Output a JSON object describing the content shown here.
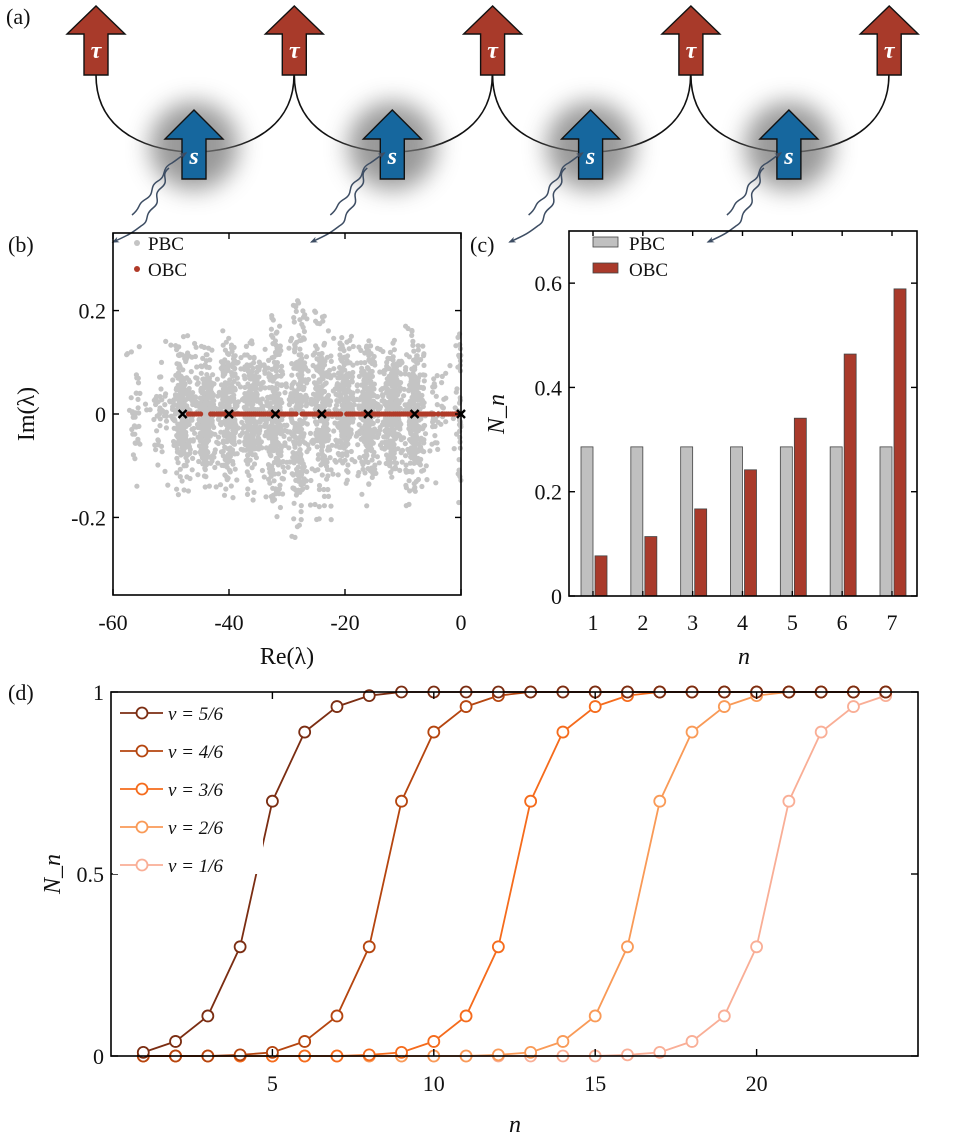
{
  "panel_labels": {
    "a": "(a)",
    "b": "(b)",
    "c": "(c)",
    "d": "(d)"
  },
  "diagram": {
    "top_spin_label": "τ",
    "bottom_spin_label": "s",
    "n_units": 5,
    "colors": {
      "tau": "#a83a2a",
      "s": "#16679e",
      "photon": "#3d4d63"
    }
  },
  "chart_data": [
    {
      "panel": "b",
      "type": "scatter",
      "xlabel": "Re(λ)",
      "ylabel": "Im(λ)",
      "xlim": [
        -60,
        0
      ],
      "ylim": [
        -0.35,
        0.35
      ],
      "xticks": [
        "-60",
        "-40",
        "-20",
        "0"
      ],
      "xtick_values": [
        -60,
        -40,
        -20,
        0
      ],
      "yticks": [
        "0.2",
        "0",
        "-0.2"
      ],
      "ytick_values": [
        0.2,
        0,
        -0.2
      ],
      "legend": [
        {
          "name": "PBC",
          "color": "#c4c4c4"
        },
        {
          "name": "OBC",
          "color": "#b03a28"
        }
      ],
      "legend_placement": "top-left",
      "pbc_clusters": [
        {
          "re": -56,
          "im_max": 0.18
        },
        {
          "re": -52,
          "im_max": 0.15
        },
        {
          "re": -48,
          "im_max": 0.17
        },
        {
          "re": -44,
          "im_max": 0.15
        },
        {
          "re": -40,
          "im_max": 0.17
        },
        {
          "re": -36,
          "im_max": 0.17
        },
        {
          "re": -32,
          "im_max": 0.21
        },
        {
          "re": -28,
          "im_max": 0.26
        },
        {
          "re": -24,
          "im_max": 0.22
        },
        {
          "re": -20,
          "im_max": 0.16
        },
        {
          "re": -16,
          "im_max": 0.18
        },
        {
          "re": -12,
          "im_max": 0.16
        },
        {
          "re": -8,
          "im_max": 0.18
        },
        {
          "re": -4,
          "im_max": 0.15
        },
        {
          "re": 0,
          "im_max": 0.2
        }
      ],
      "obc_range_re": [
        -47,
        0
      ],
      "obc_im": 0,
      "exceptional_points_re": [
        -48,
        -40,
        -32,
        -24,
        -16,
        -8,
        0
      ]
    },
    {
      "panel": "c",
      "type": "bar",
      "xlabel": "n",
      "ylabel": "N_n",
      "categories": [
        "1",
        "2",
        "3",
        "4",
        "5",
        "6",
        "7"
      ],
      "ylim": [
        0,
        0.7
      ],
      "yticks": [
        "0",
        "0.2",
        "0.4",
        "0.6"
      ],
      "ytick_values": [
        0,
        0.2,
        0.4,
        0.6
      ],
      "legend_placement": "top-left",
      "series": [
        {
          "name": "PBC",
          "color": "#c0c0c0",
          "values": [
            0.286,
            0.286,
            0.286,
            0.286,
            0.286,
            0.286,
            0.286
          ]
        },
        {
          "name": "OBC",
          "color": "#a93a2b",
          "values": [
            0.077,
            0.114,
            0.167,
            0.242,
            0.341,
            0.464,
            0.589
          ]
        }
      ]
    },
    {
      "panel": "d",
      "type": "line",
      "xlabel": "n",
      "ylabel": "N_n",
      "xlim": [
        0,
        25
      ],
      "ylim": [
        0,
        1
      ],
      "xticks": [
        "5",
        "10",
        "15",
        "20"
      ],
      "xtick_values": [
        5,
        10,
        15,
        20
      ],
      "yticks": [
        "0",
        "0.5",
        "1"
      ],
      "ytick_values": [
        0,
        0.5,
        1
      ],
      "legend_placement": "top-left",
      "x": [
        1,
        2,
        3,
        4,
        5,
        6,
        7,
        8,
        9,
        10,
        11,
        12,
        13,
        14,
        15,
        16,
        17,
        18,
        19,
        20,
        21,
        22,
        23,
        24
      ],
      "series": [
        {
          "name": "ν = 5/6",
          "color": "#7b2d12",
          "values": [
            0.01,
            0.04,
            0.11,
            0.3,
            0.7,
            0.89,
            0.96,
            0.99,
            1,
            1,
            1,
            1,
            1,
            1,
            1,
            1,
            1,
            1,
            1,
            1,
            1,
            1,
            1,
            1
          ]
        },
        {
          "name": "ν = 4/6",
          "color": "#b5450f",
          "values": [
            0,
            0,
            0,
            0.003,
            0.01,
            0.04,
            0.11,
            0.3,
            0.7,
            0.89,
            0.96,
            0.99,
            1,
            1,
            1,
            1,
            1,
            1,
            1,
            1,
            1,
            1,
            1,
            1
          ]
        },
        {
          "name": "ν = 3/6",
          "color": "#f56b1c",
          "values": [
            0,
            0,
            0,
            0,
            0,
            0,
            0,
            0.003,
            0.01,
            0.04,
            0.11,
            0.3,
            0.7,
            0.89,
            0.96,
            0.99,
            1,
            1,
            1,
            1,
            1,
            1,
            1,
            1
          ]
        },
        {
          "name": "ν = 2/6",
          "color": "#f99a57",
          "values": [
            0,
            0,
            0,
            0,
            0,
            0,
            0,
            0,
            0,
            0,
            0,
            0.003,
            0.01,
            0.04,
            0.11,
            0.3,
            0.7,
            0.89,
            0.96,
            0.99,
            1,
            1,
            1,
            1
          ]
        },
        {
          "name": "ν = 1/6",
          "color": "#f9ae96",
          "values": [
            0,
            0,
            0,
            0,
            0,
            0,
            0,
            0,
            0,
            0,
            0,
            0,
            0,
            0,
            0,
            0.003,
            0.01,
            0.04,
            0.11,
            0.3,
            0.7,
            0.89,
            0.96,
            0.99
          ]
        }
      ]
    }
  ]
}
